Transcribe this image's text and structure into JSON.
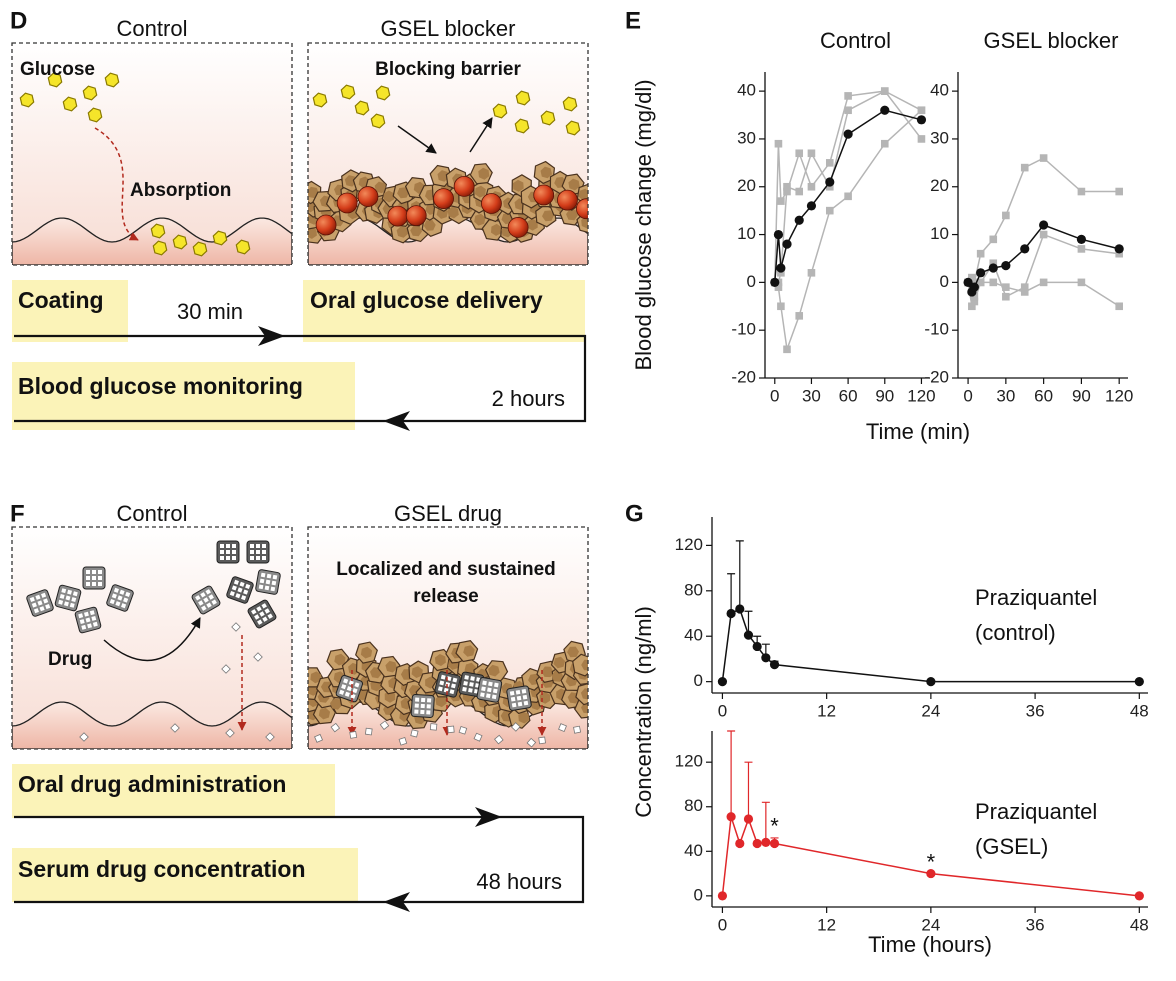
{
  "panel_d": {
    "letter": "D",
    "left_title": "Control",
    "right_title": "GSEL blocker",
    "glucose": "Glucose",
    "absorption": "Absorption",
    "barrier": "Blocking barrier",
    "step1": "Coating",
    "wait": "30 min",
    "step2": "Oral glucose delivery",
    "step3": "Blood glucose monitoring",
    "duration": "2 hours"
  },
  "panel_f": {
    "letter": "F",
    "left_title": "Control",
    "right_title": "GSEL drug",
    "drug": "Drug",
    "release": [
      "Localized and sustained",
      "release"
    ],
    "step1": "Oral drug administration",
    "step2": "Serum drug concentration",
    "duration": "48 hours"
  },
  "panel_e": {
    "letter": "E",
    "y_label": "Blood glucose change (mg/dl)",
    "x_label": "Time (min)"
  },
  "panel_g": {
    "letter": "G",
    "y_label": "Concentration (ng/ml)",
    "x_label": "Time (hours)"
  },
  "chart_data": [
    {
      "type": "line",
      "title": "Control",
      "x": [
        0,
        3,
        5,
        10,
        20,
        30,
        45,
        60,
        90,
        120
      ],
      "xlim": [
        -8,
        127
      ],
      "xticks": [
        0,
        30,
        60,
        90,
        120
      ],
      "ylim": [
        -20,
        44
      ],
      "yticks": [
        -20,
        -10,
        0,
        10,
        20,
        30,
        40
      ],
      "series": [
        {
          "color": "#b5b5b5",
          "marker": "square",
          "values": [
            0,
            29,
            17,
            19,
            27,
            20,
            25,
            39,
            40,
            30
          ]
        },
        {
          "color": "#b5b5b5",
          "marker": "square",
          "values": [
            0,
            0,
            2,
            20,
            19,
            27,
            20,
            36,
            40,
            36
          ]
        },
        {
          "color": "#b5b5b5",
          "marker": "square",
          "values": [
            0,
            -1,
            -5,
            -14,
            -7,
            2,
            15,
            18,
            29,
            36
          ]
        },
        {
          "color": "#111111",
          "marker": "circle",
          "values": [
            0,
            10,
            3,
            8,
            13,
            16,
            21,
            31,
            36,
            34
          ]
        }
      ]
    },
    {
      "type": "line",
      "title": "GSEL blocker",
      "x": [
        0,
        3,
        5,
        10,
        20,
        30,
        45,
        60,
        90,
        120
      ],
      "xlim": [
        -8,
        127
      ],
      "xticks": [
        0,
        30,
        60,
        90,
        120
      ],
      "ylim": [
        -20,
        44
      ],
      "yticks": [
        -20,
        -10,
        0,
        10,
        20,
        30,
        40
      ],
      "series": [
        {
          "color": "#b5b5b5",
          "marker": "square",
          "values": [
            0,
            0,
            0,
            6,
            9,
            14,
            24,
            26,
            19,
            19
          ]
        },
        {
          "color": "#b5b5b5",
          "marker": "square",
          "values": [
            0,
            -5,
            -4,
            0,
            4,
            -3,
            -1,
            10,
            7,
            6
          ]
        },
        {
          "color": "#b5b5b5",
          "marker": "square",
          "values": [
            0,
            1,
            -3,
            0,
            0,
            -1,
            -2,
            0,
            0,
            -5
          ]
        },
        {
          "color": "#111111",
          "marker": "circle",
          "values": [
            0,
            -2,
            -1,
            2,
            3,
            3.5,
            7,
            12,
            9,
            7
          ]
        }
      ]
    },
    {
      "type": "errorline",
      "label": [
        "Praziquantel",
        "(control)"
      ],
      "x": [
        0,
        1,
        2,
        3,
        4,
        5,
        6,
        24,
        48
      ],
      "xlim": [
        -1.2,
        49
      ],
      "xticks": [
        0,
        12,
        24,
        36,
        48
      ],
      "ylim": [
        -10,
        145
      ],
      "yticks": [
        0,
        40,
        80,
        120
      ],
      "series": [
        {
          "color": "#111111",
          "marker": "circle",
          "values": [
            0,
            60,
            64,
            41,
            31,
            21,
            15,
            0,
            0
          ],
          "errors": [
            0,
            35,
            60,
            21,
            9,
            12,
            3,
            0,
            0
          ]
        }
      ]
    },
    {
      "type": "errorline",
      "label": [
        "Praziquantel",
        "(GSEL)"
      ],
      "x": [
        0,
        1,
        2,
        3,
        4,
        5,
        6,
        24,
        48
      ],
      "xlim": [
        -1.2,
        49
      ],
      "xticks": [
        0,
        12,
        24,
        36,
        48
      ],
      "ylim": [
        -10,
        148
      ],
      "yticks": [
        0,
        40,
        80,
        120
      ],
      "series": [
        {
          "color": "#e0272a",
          "marker": "circle",
          "values": [
            0,
            71,
            47,
            69,
            47,
            48,
            47,
            20,
            0
          ],
          "errors": [
            0,
            77,
            0,
            51,
            0,
            36,
            5,
            0,
            0
          ]
        }
      ],
      "annotations": [
        {
          "text": "*",
          "x": 6
        },
        {
          "text": "*",
          "x": 24
        }
      ]
    }
  ]
}
